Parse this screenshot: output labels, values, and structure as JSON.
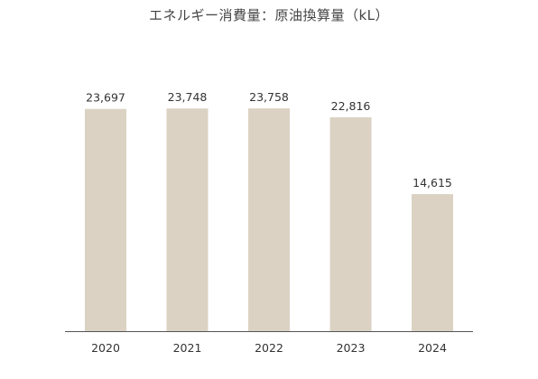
{
  "chart_data": {
    "type": "bar",
    "title": "エネルギー消費量：原油換算量（kL）",
    "categories": [
      "2020",
      "2021",
      "2022",
      "2023",
      "2024"
    ],
    "values": [
      23697,
      23748,
      23758,
      22816,
      14615
    ],
    "data_labels": [
      "23,697",
      "23,748",
      "23,758",
      "22,816",
      "14,615"
    ],
    "ylim": [
      0,
      28000
    ],
    "grid": false,
    "legend": "none",
    "bar_color": "#dbd2c4",
    "axis_color": "#555555"
  }
}
